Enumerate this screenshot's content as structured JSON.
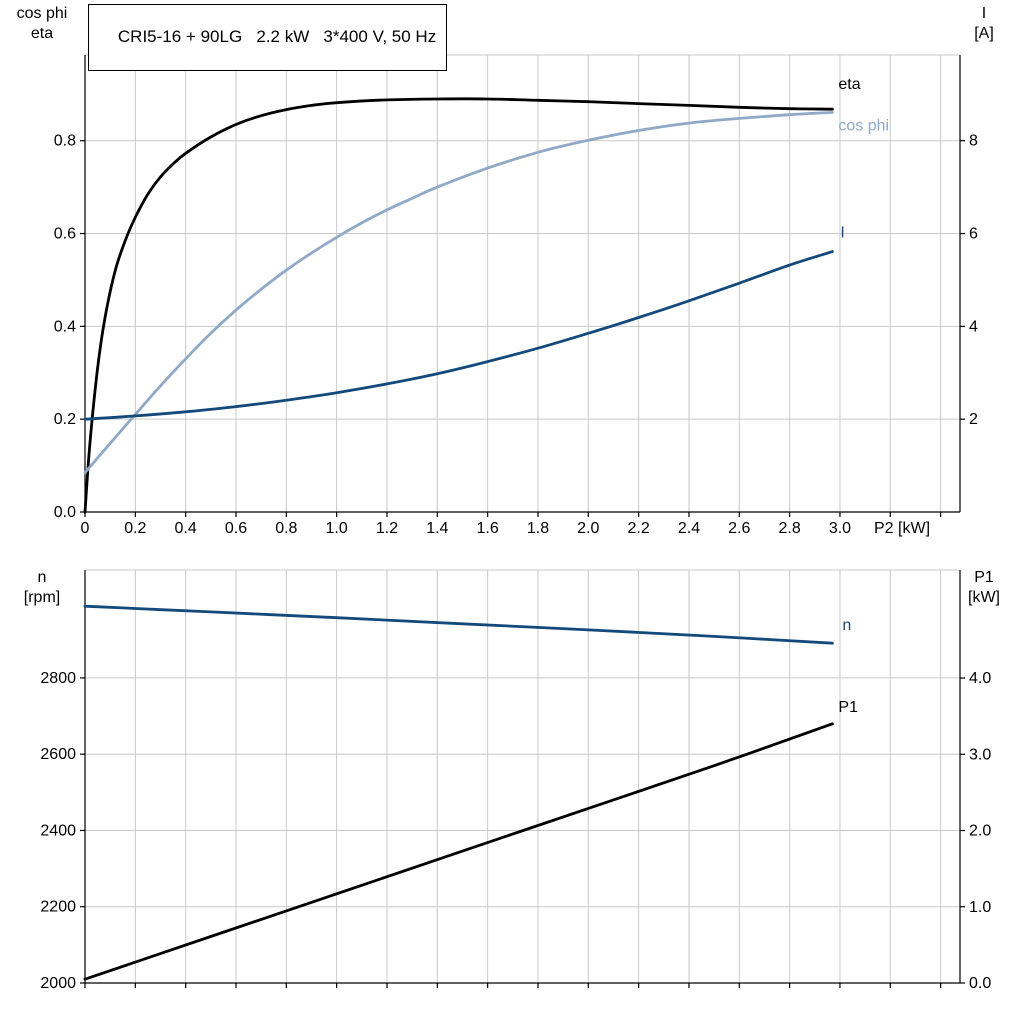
{
  "header": {
    "title_box": "CRI5-16 + 90LG   2.2 kW   3*400 V, 50 Hz"
  },
  "axis_titles": {
    "top_left_1": "cos phi",
    "top_left_2": "eta",
    "top_right_1": "I",
    "top_right_2": "[A]",
    "bottom_left_1": "n",
    "bottom_left_2": "[rpm]",
    "bottom_right_1": "P1",
    "bottom_right_2": "[kW]",
    "x_axis": "P2 [kW]"
  },
  "colors": {
    "background": "#ffffff",
    "grid": "#c9c9c9",
    "axis": "#000000",
    "black": "#000000",
    "light_blue": "#8fa9c6",
    "dark_blue": "#13497b"
  },
  "chart_data": [
    {
      "type": "line",
      "panel": "top",
      "title": "CRI5-16 + 90LG   2.2 kW   3*400 V, 50 Hz",
      "xlabel": "P2 [kW]",
      "x_axis": {
        "range": [
          0,
          3.477
        ],
        "grid": [
          0,
          0.2,
          0.4,
          0.6,
          0.8,
          1.0,
          1.2,
          1.4,
          1.6,
          1.8,
          2.0,
          2.2,
          2.4,
          2.6,
          2.8,
          3.0,
          3.2,
          3.4
        ],
        "ticks": [
          0,
          0.2,
          0.4,
          0.6,
          0.8,
          1.0,
          1.2,
          1.4,
          1.6,
          1.8,
          2.0,
          2.2,
          2.4,
          2.6,
          2.8,
          3.0
        ],
        "tick_labels": [
          "0",
          "0.2",
          "0.4",
          "0.6",
          "0.8",
          "1.0",
          "1.2",
          "1.4",
          "1.6",
          "1.8",
          "2.0",
          "2.2",
          "2.4",
          "2.6",
          "2.8",
          "3.0"
        ]
      },
      "left_axis": {
        "title_lines": [
          "cos phi",
          "eta"
        ],
        "range": [
          0,
          0.9847
        ],
        "ticks": [
          0,
          0.2,
          0.4,
          0.6,
          0.8
        ],
        "tick_labels": [
          "0.0",
          "0.2",
          "0.4",
          "0.6",
          "0.8"
        ]
      },
      "right_axis": {
        "title_lines": [
          "I",
          "[A]"
        ],
        "range": [
          0,
          9.847
        ],
        "ticks": [
          2,
          4,
          6,
          8
        ],
        "tick_labels": [
          "2",
          "4",
          "6",
          "8"
        ]
      },
      "series": [
        {
          "id": "eta",
          "name": "eta",
          "axis": "left",
          "color": "black",
          "label_offset": [
            6,
            -20
          ],
          "x": [
            0,
            0.02,
            0.05,
            0.08,
            0.12,
            0.16,
            0.2,
            0.25,
            0.3,
            0.35,
            0.4,
            0.5,
            0.6,
            0.7,
            0.8,
            0.9,
            1.0,
            1.2,
            1.4,
            1.6,
            1.8,
            2.0,
            2.2,
            2.4,
            2.6,
            2.8,
            2.97
          ],
          "y": [
            0,
            0.15,
            0.31,
            0.42,
            0.52,
            0.585,
            0.635,
            0.685,
            0.722,
            0.75,
            0.773,
            0.808,
            0.835,
            0.854,
            0.867,
            0.876,
            0.882,
            0.888,
            0.89,
            0.89,
            0.887,
            0.884,
            0.88,
            0.876,
            0.872,
            0.869,
            0.868
          ]
        },
        {
          "id": "cos-phi",
          "name": "cos phi",
          "axis": "left",
          "color": "light_blue",
          "label_offset": [
            6,
            18
          ],
          "x": [
            0,
            0.1,
            0.2,
            0.3,
            0.4,
            0.5,
            0.6,
            0.7,
            0.8,
            0.9,
            1.0,
            1.1,
            1.2,
            1.3,
            1.4,
            1.6,
            1.8,
            2.0,
            2.2,
            2.4,
            2.6,
            2.8,
            2.97
          ],
          "y": [
            0.085,
            0.148,
            0.21,
            0.272,
            0.33,
            0.385,
            0.435,
            0.48,
            0.521,
            0.558,
            0.592,
            0.623,
            0.651,
            0.676,
            0.7,
            0.741,
            0.775,
            0.801,
            0.822,
            0.838,
            0.848,
            0.856,
            0.861
          ]
        },
        {
          "id": "current",
          "name": "I",
          "axis": "right",
          "color": "dark_blue",
          "label_offset": [
            8,
            -14
          ],
          "x": [
            0,
            0.2,
            0.4,
            0.6,
            0.8,
            1.0,
            1.2,
            1.4,
            1.6,
            1.8,
            2.0,
            2.2,
            2.4,
            2.6,
            2.8,
            2.97
          ],
          "y": [
            2.0,
            2.07,
            2.16,
            2.27,
            2.41,
            2.57,
            2.76,
            2.98,
            3.24,
            3.53,
            3.85,
            4.19,
            4.55,
            4.93,
            5.32,
            5.61
          ]
        }
      ]
    },
    {
      "type": "line",
      "panel": "bottom",
      "xlabel": "",
      "x_axis": {
        "range": [
          0,
          3.477
        ],
        "grid": [
          0,
          0.2,
          0.4,
          0.6,
          0.8,
          1.0,
          1.2,
          1.4,
          1.6,
          1.8,
          2.0,
          2.2,
          2.4,
          2.6,
          2.8,
          3.0,
          3.2,
          3.4
        ],
        "ticks": [],
        "tick_labels": []
      },
      "left_axis": {
        "title_lines": [
          "n",
          "[rpm]"
        ],
        "range": [
          2000,
          3083
        ],
        "ticks": [
          2000,
          2200,
          2400,
          2600,
          2800
        ],
        "tick_labels": [
          "2000",
          "2200",
          "2400",
          "2600",
          "2800"
        ]
      },
      "right_axis": {
        "title_lines": [
          "P1",
          "[kW]"
        ],
        "range": [
          0,
          5.417
        ],
        "ticks": [
          0,
          1,
          2,
          3,
          4
        ],
        "tick_labels": [
          "0.0",
          "1.0",
          "2.0",
          "3.0",
          "4.0"
        ]
      },
      "series": [
        {
          "id": "speed",
          "name": "n",
          "axis": "left",
          "color": "dark_blue",
          "label_offset": [
            10,
            -13
          ],
          "x": [
            0,
            0.5,
            1.0,
            1.5,
            2.0,
            2.5,
            2.97
          ],
          "y": [
            2988,
            2973,
            2958,
            2942,
            2926,
            2909,
            2891
          ]
        },
        {
          "id": "p1",
          "name": "P1",
          "axis": "right",
          "color": "black",
          "label_offset": [
            6,
            -12
          ],
          "x": [
            0,
            0.5,
            1.0,
            1.5,
            2.0,
            2.5,
            2.97
          ],
          "y": [
            0.05,
            0.61,
            1.17,
            1.73,
            2.29,
            2.85,
            3.4
          ]
        }
      ]
    }
  ]
}
